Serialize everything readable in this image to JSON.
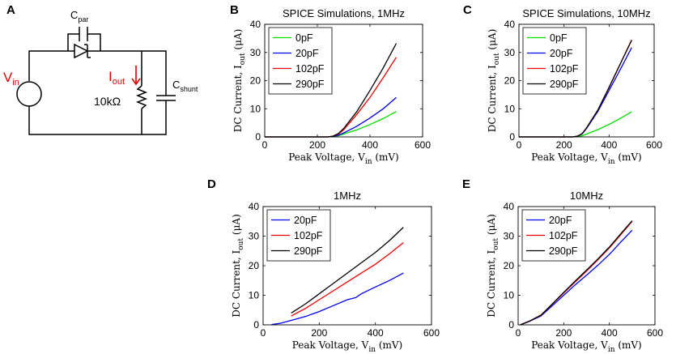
{
  "panel_letters": [
    "A",
    "B",
    "C",
    "D",
    "E"
  ],
  "circuit": {
    "vin_main": "V",
    "vin_sub": "in",
    "iout_main": "I",
    "iout_sub": "out",
    "cpar_main": "C",
    "cpar_sub": "par",
    "cshunt_main": "C",
    "cshunt_sub": "shunt",
    "resistor": "10kΩ"
  },
  "chart_data": [
    {
      "type": "line",
      "panel": "B",
      "title": "SPICE Simulations, 1MHz",
      "xlabel_main": "Peak Voltage, V",
      "xlabel_sub": "in",
      "xlabel_tail": " (mV)",
      "ylabel_main": "DC Current, I",
      "ylabel_sub": "out",
      "ylabel_tail": " (μA)",
      "xlim": [
        0,
        600
      ],
      "ylim": [
        0,
        40
      ],
      "xticks": [
        0,
        200,
        400,
        600
      ],
      "yticks": [
        0,
        10,
        20,
        30,
        40
      ],
      "legend": "top-left",
      "series": [
        {
          "name": "0pF",
          "color": "#00dd00",
          "x": [
            0,
            200,
            240,
            260,
            280,
            300,
            350,
            400,
            450,
            500
          ],
          "y": [
            0,
            0,
            0,
            0.1,
            0.4,
            1.0,
            2.5,
            4.4,
            6.5,
            9.0
          ]
        },
        {
          "name": "20pF",
          "color": "#0000ee",
          "x": [
            0,
            200,
            240,
            260,
            280,
            300,
            350,
            400,
            450,
            500
          ],
          "y": [
            0,
            0,
            0,
            0.2,
            0.6,
            1.4,
            3.8,
            6.7,
            10.0,
            14.0
          ]
        },
        {
          "name": "102pF",
          "color": "#ee0000",
          "x": [
            0,
            200,
            240,
            260,
            280,
            300,
            350,
            400,
            450,
            500
          ],
          "y": [
            0,
            0,
            0,
            0.3,
            1.0,
            2.5,
            8.0,
            14.0,
            21.0,
            28.3
          ]
        },
        {
          "name": "290pF",
          "color": "#000000",
          "x": [
            0,
            200,
            240,
            260,
            280,
            300,
            350,
            400,
            450,
            500
          ],
          "y": [
            0,
            0,
            0,
            0.3,
            1.2,
            3.0,
            9.0,
            16.5,
            24.5,
            33.2
          ]
        }
      ]
    },
    {
      "type": "line",
      "panel": "C",
      "title": "SPICE Simulations, 10MHz",
      "xlabel_main": "Peak Voltage, V",
      "xlabel_sub": "in",
      "xlabel_tail": " (mV)",
      "ylabel_main": "DC Current, I",
      "ylabel_sub": "out",
      "ylabel_tail": " (μA)",
      "xlim": [
        0,
        600
      ],
      "ylim": [
        0,
        40
      ],
      "xticks": [
        0,
        200,
        400,
        600
      ],
      "yticks": [
        0,
        10,
        20,
        30,
        40
      ],
      "legend": "top-left",
      "series": [
        {
          "name": "0pF",
          "color": "#00dd00",
          "x": [
            0,
            240,
            260,
            280,
            300,
            350,
            400,
            450,
            500
          ],
          "y": [
            0,
            0,
            0.1,
            0.4,
            1.0,
            2.6,
            4.4,
            6.6,
            8.9
          ]
        },
        {
          "name": "20pF",
          "color": "#0000ee",
          "x": [
            0,
            240,
            260,
            280,
            300,
            350,
            400,
            450,
            500
          ],
          "y": [
            0,
            0,
            0.3,
            1.0,
            3.0,
            9.0,
            16.5,
            24.0,
            31.7
          ]
        },
        {
          "name": "102pF",
          "color": "#ee0000",
          "x": [
            0,
            240,
            260,
            280,
            300,
            350,
            400,
            450,
            500
          ],
          "y": [
            0,
            0,
            0.3,
            1.1,
            3.2,
            9.5,
            17.5,
            26.0,
            34.5
          ]
        },
        {
          "name": "290pF",
          "color": "#000000",
          "x": [
            0,
            240,
            260,
            280,
            300,
            350,
            400,
            450,
            500
          ],
          "y": [
            0,
            0,
            0.3,
            1.1,
            3.2,
            9.5,
            17.6,
            26.0,
            34.3
          ]
        }
      ]
    },
    {
      "type": "line",
      "panel": "D",
      "title": "1MHz",
      "xlabel_main": "Peak Voltage, V",
      "xlabel_sub": "in",
      "xlabel_tail": " (mV)",
      "ylabel_main": "DC Current, I",
      "ylabel_sub": "out",
      "ylabel_tail": " (μA)",
      "xlim": [
        0,
        600
      ],
      "ylim": [
        0,
        40
      ],
      "xticks": [
        0,
        200,
        400,
        600
      ],
      "yticks": [
        0,
        10,
        20,
        30,
        40
      ],
      "legend": "top-left",
      "series": [
        {
          "name": "20pF",
          "color": "#0000ee",
          "x": [
            30,
            60,
            100,
            150,
            200,
            250,
            300,
            330,
            350,
            400,
            450,
            500
          ],
          "y": [
            0.1,
            0.5,
            1.5,
            2.8,
            4.5,
            6.5,
            8.5,
            9.2,
            10.5,
            12.8,
            15.0,
            17.5
          ]
        },
        {
          "name": "102pF",
          "color": "#ee0000",
          "x": [
            100,
            150,
            200,
            250,
            300,
            350,
            400,
            450,
            500
          ],
          "y": [
            3.0,
            5.5,
            8.5,
            11.5,
            14.5,
            17.5,
            20.5,
            24.0,
            27.8
          ]
        },
        {
          "name": "290pF",
          "color": "#000000",
          "x": [
            100,
            150,
            200,
            250,
            300,
            350,
            400,
            450,
            500
          ],
          "y": [
            4.0,
            7.0,
            10.5,
            14.0,
            17.5,
            21.0,
            24.5,
            28.5,
            33.0
          ]
        }
      ]
    },
    {
      "type": "line",
      "panel": "E",
      "title": "10MHz",
      "xlabel_main": "Peak Voltage, V",
      "xlabel_sub": "in",
      "xlabel_tail": " (mV)",
      "ylabel_main": "DC Current, I",
      "ylabel_sub": "out",
      "ylabel_tail": " (μA)",
      "xlim": [
        0,
        600
      ],
      "ylim": [
        0,
        40
      ],
      "xticks": [
        0,
        200,
        400,
        600
      ],
      "yticks": [
        0,
        10,
        20,
        30,
        40
      ],
      "legend": "top-left",
      "series": [
        {
          "name": "20pF",
          "color": "#0000ee",
          "x": [
            10,
            50,
            100,
            150,
            200,
            250,
            300,
            350,
            400,
            450,
            500
          ],
          "y": [
            0,
            1.2,
            3.0,
            6.5,
            10.0,
            13.5,
            16.8,
            20.2,
            23.8,
            28.0,
            32.0
          ]
        },
        {
          "name": "102pF",
          "color": "#ee0000",
          "x": [
            10,
            50,
            100,
            150,
            200,
            250,
            300,
            350,
            400,
            450,
            500
          ],
          "y": [
            0,
            1.3,
            3.2,
            7.0,
            10.8,
            14.5,
            18.2,
            22.0,
            26.0,
            30.5,
            35.0
          ]
        },
        {
          "name": "290pF",
          "color": "#000000",
          "x": [
            10,
            50,
            100,
            150,
            200,
            250,
            300,
            350,
            400,
            450,
            500
          ],
          "y": [
            0,
            1.3,
            3.3,
            7.1,
            11.0,
            14.8,
            18.5,
            22.3,
            26.3,
            30.8,
            35.2
          ]
        }
      ]
    }
  ]
}
